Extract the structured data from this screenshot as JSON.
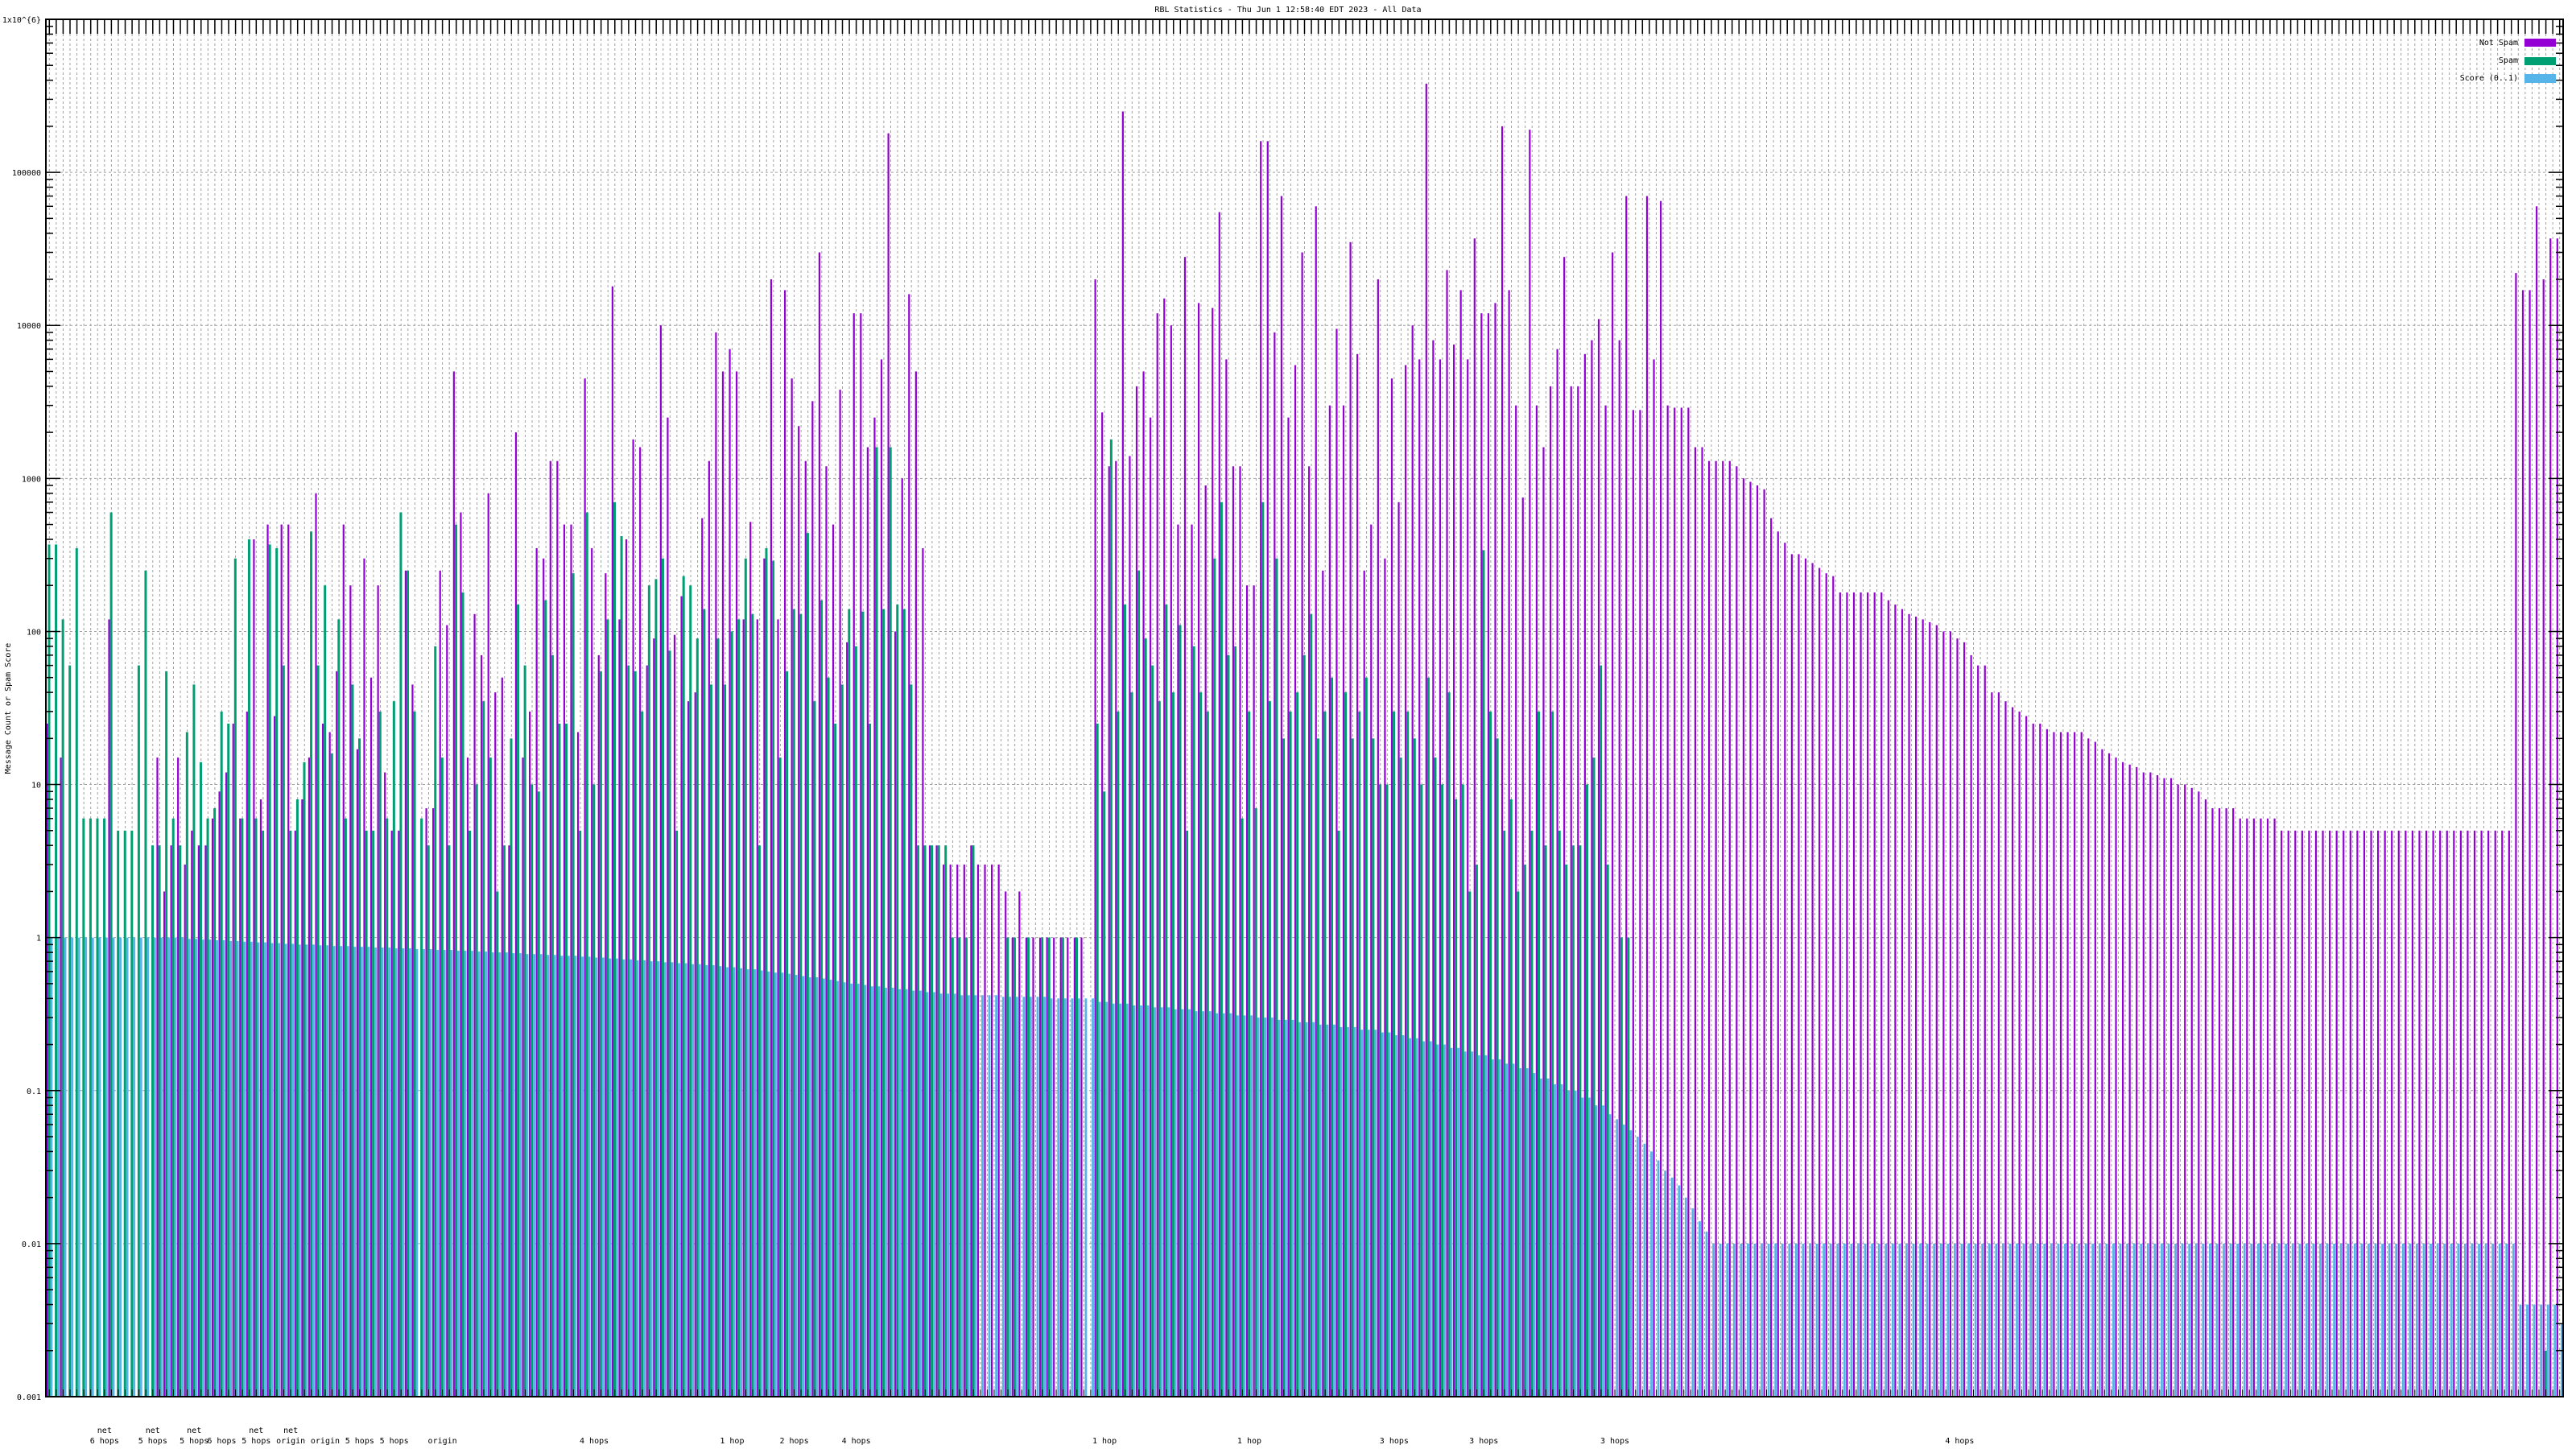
{
  "chart_data": {
    "type": "bar",
    "title": "RBL Statistics - Thu Jun  1 12:58:40 EDT 2023 - All Data",
    "xlabel": "",
    "ylabel": "Message Count or Spam Score",
    "yscale": "log",
    "ylim": [
      0.001,
      1000000
    ],
    "y_ticks": [
      {
        "value": 1000000,
        "label": "1x10^{6}"
      },
      {
        "value": 100000,
        "label": "100000"
      },
      {
        "value": 10000,
        "label": "10000"
      },
      {
        "value": 1000,
        "label": "1000"
      },
      {
        "value": 100,
        "label": "100"
      },
      {
        "value": 10,
        "label": "10"
      },
      {
        "value": 1,
        "label": "1"
      },
      {
        "value": 0.1,
        "label": "0.1"
      },
      {
        "value": 0.01,
        "label": "0.01"
      },
      {
        "value": 0.001,
        "label": "0.001"
      }
    ],
    "grid": true,
    "legend_position": "top-right",
    "category_count": 365,
    "x_label_fragments": [
      {
        "index": 8,
        "lines": [
          "net",
          "6 hops"
        ]
      },
      {
        "index": 15,
        "lines": [
          "net",
          "5 hops"
        ]
      },
      {
        "index": 21,
        "lines": [
          "net",
          "5 hops"
        ]
      },
      {
        "index": 25,
        "lines": [
          "",
          "6 hops"
        ]
      },
      {
        "index": 30,
        "lines": [
          "net",
          "5 hops"
        ]
      },
      {
        "index": 35,
        "lines": [
          "net",
          "origin"
        ]
      },
      {
        "index": 40,
        "lines": [
          "",
          "origin"
        ]
      },
      {
        "index": 45,
        "lines": [
          "",
          "5 hops"
        ]
      },
      {
        "index": 50,
        "lines": [
          "",
          "5 hops"
        ]
      },
      {
        "index": 57,
        "lines": [
          "",
          "origin"
        ]
      },
      {
        "index": 79,
        "lines": [
          "",
          "4 hops"
        ]
      },
      {
        "index": 99,
        "lines": [
          "",
          "1 hop"
        ]
      },
      {
        "index": 108,
        "lines": [
          "",
          "2 hops"
        ]
      },
      {
        "index": 117,
        "lines": [
          "",
          "4 hops"
        ]
      },
      {
        "index": 153,
        "lines": [
          "",
          "1 hop"
        ]
      },
      {
        "index": 174,
        "lines": [
          "",
          "1 hop"
        ]
      },
      {
        "index": 195,
        "lines": [
          "",
          "3 hops"
        ]
      },
      {
        "index": 208,
        "lines": [
          "",
          "3 hops"
        ]
      },
      {
        "index": 227,
        "lines": [
          "",
          "3 hops"
        ]
      },
      {
        "index": 277,
        "lines": [
          "",
          "4 hops"
        ]
      }
    ],
    "series": [
      {
        "name": "Not Spam",
        "color": "#9400d3",
        "values": [
          25,
          0,
          15,
          0,
          0,
          0,
          0,
          0,
          0,
          120,
          0,
          0,
          0,
          0,
          0,
          0,
          15,
          2,
          4,
          15,
          3,
          5,
          4,
          4,
          6,
          9,
          12,
          25,
          6,
          30,
          400,
          8,
          500,
          28,
          500,
          500,
          5,
          8,
          15,
          800,
          25,
          22,
          55,
          500,
          200,
          17,
          300,
          50,
          200,
          12,
          5,
          5,
          250,
          45,
          0,
          7,
          7,
          250,
          110,
          5000,
          600,
          15,
          130,
          70,
          800,
          40,
          50,
          4,
          2000,
          15,
          30,
          350,
          300,
          1300,
          1300,
          500,
          500,
          22,
          4500,
          350,
          70,
          240,
          18000,
          120,
          400,
          1800,
          1600,
          60,
          90,
          10000,
          2500,
          95,
          170,
          35,
          40,
          550,
          1300,
          9000,
          5000,
          7000,
          5000,
          120,
          520,
          120,
          300,
          20000,
          120,
          17000,
          4500,
          2200,
          1300,
          3200,
          30000,
          1200,
          500,
          3800,
          85,
          12000,
          12000,
          1600,
          2500,
          6000,
          180000,
          100,
          1000,
          16000,
          5000,
          350,
          4,
          4,
          3,
          3,
          3,
          3,
          4,
          3,
          3,
          3,
          3,
          2,
          1,
          2,
          1,
          1,
          1,
          1,
          1,
          1,
          1,
          1,
          1,
          0,
          20000,
          2700,
          1200,
          1300,
          250000,
          1400,
          4000,
          5000,
          2500,
          12000,
          15000,
          10000,
          500,
          28000,
          500,
          14000,
          900,
          13000,
          55000,
          6000,
          1200,
          1200,
          200,
          200,
          160000,
          160000,
          9000,
          70000,
          2500,
          5500,
          30000,
          1200,
          60000,
          250,
          3000,
          9500,
          3000,
          35000,
          6500,
          250,
          500,
          20000,
          300,
          4500,
          700,
          5500,
          10000,
          6000,
          380000,
          8000,
          6000,
          23000,
          7500,
          17000,
          6000,
          37000,
          12000,
          12000,
          14000,
          200000,
          17000,
          3000,
          750,
          190000,
          3000,
          1600,
          4000,
          7000,
          28000,
          4000,
          4000,
          6500,
          8000,
          11000,
          3000,
          30000,
          8000,
          70000,
          2800,
          2800,
          70000,
          6000,
          65000,
          3000,
          2900,
          2900,
          2900,
          1600,
          1600,
          1300,
          1300,
          1300,
          1300,
          1200,
          1000,
          950,
          900,
          850,
          550,
          450,
          380,
          320,
          320,
          300,
          280,
          260,
          240,
          230,
          180,
          180,
          180,
          180,
          180,
          180,
          180,
          160,
          150,
          140,
          130,
          125,
          120,
          115,
          110,
          100,
          100,
          90,
          85,
          70,
          60,
          60,
          40,
          40,
          35,
          32,
          30,
          28,
          25,
          25,
          23,
          22,
          22,
          22,
          22,
          22,
          20,
          19,
          17,
          16,
          15,
          14,
          13.5,
          13,
          12,
          12,
          11.5,
          11,
          11,
          10,
          10,
          9.5,
          9,
          8,
          7,
          7,
          7,
          7,
          6,
          6,
          6,
          6,
          6,
          6,
          5,
          5,
          5,
          5,
          5,
          5,
          5,
          5,
          5,
          5,
          5,
          5,
          5,
          5,
          5,
          5,
          5,
          5,
          5,
          5,
          5,
          5,
          5,
          5,
          5,
          5,
          5,
          5,
          5,
          5,
          5,
          5,
          5,
          5,
          22000,
          17000,
          17000,
          60000,
          20000,
          37000,
          37000
        ]
      },
      {
        "name": "Spam",
        "color": "#009e73",
        "values": [
          370,
          370,
          120,
          60,
          350,
          6,
          6,
          6,
          6,
          600,
          5,
          5,
          5,
          60,
          250,
          4,
          4,
          55,
          6,
          4,
          22,
          45,
          14,
          6,
          7,
          30,
          25,
          300,
          6,
          400,
          6,
          5,
          370,
          350,
          60,
          5,
          8,
          14,
          450,
          60,
          200,
          16,
          120,
          6,
          45,
          20,
          5,
          5,
          30,
          6,
          35,
          600,
          250,
          30,
          6,
          4,
          80,
          15,
          4,
          500,
          180,
          5,
          10,
          35,
          15,
          2,
          4,
          20,
          150,
          60,
          10,
          9,
          160,
          70,
          25,
          25,
          240,
          5,
          600,
          10,
          55,
          120,
          700,
          420,
          60,
          55,
          30,
          200,
          220,
          300,
          75,
          5,
          230,
          200,
          90,
          140,
          45,
          90,
          45,
          100,
          120,
          300,
          130,
          4,
          350,
          290,
          15,
          55,
          140,
          130,
          440,
          35,
          160,
          50,
          25,
          45,
          140,
          80,
          135,
          25,
          1600,
          140,
          1600,
          150,
          140,
          45,
          4,
          4,
          4,
          4,
          4,
          1,
          1,
          1,
          4,
          0,
          0,
          0,
          0,
          1,
          1,
          0,
          1,
          0,
          1,
          1,
          0,
          1,
          0,
          1,
          0,
          0,
          25,
          9,
          1800,
          30,
          150,
          40,
          250,
          90,
          60,
          35,
          150,
          40,
          110,
          5,
          80,
          40,
          30,
          300,
          700,
          70,
          80,
          6,
          30,
          7,
          700,
          35,
          300,
          20,
          30,
          40,
          70,
          130,
          20,
          30,
          50,
          5,
          40,
          20,
          30,
          50,
          20,
          10,
          10,
          30,
          15,
          30,
          20,
          10,
          50,
          15,
          10,
          40,
          8,
          10,
          2,
          3,
          340,
          30,
          20,
          5,
          8,
          2,
          3,
          5,
          30,
          4,
          30,
          5,
          3,
          4,
          4,
          10,
          15,
          60,
          3,
          0,
          1,
          1,
          0,
          0,
          0,
          0,
          0,
          0,
          0,
          0,
          0,
          0,
          0,
          0,
          0,
          0,
          0,
          0,
          0,
          0,
          0,
          0,
          0,
          0,
          0,
          0,
          0,
          0,
          0,
          0,
          0,
          0,
          0,
          0,
          0,
          0,
          0,
          0,
          0,
          0,
          0,
          0,
          0,
          0,
          0,
          0,
          0,
          0,
          0,
          0,
          0,
          0,
          0,
          0,
          0,
          0,
          0,
          0,
          0,
          0,
          0,
          0,
          0,
          0,
          0,
          0,
          0,
          0,
          0,
          0,
          0,
          0,
          0,
          0,
          0,
          0,
          0,
          0,
          0,
          0,
          0,
          0,
          0,
          0,
          0,
          0,
          0,
          0,
          0,
          0,
          0,
          0,
          0,
          0,
          0,
          0,
          0,
          0,
          0,
          0,
          0,
          0,
          0,
          0,
          0,
          0,
          0,
          0,
          0,
          0,
          0,
          0,
          0,
          0,
          0,
          0,
          0,
          0,
          0,
          0,
          0,
          0,
          0,
          0,
          0,
          0,
          0,
          0,
          0,
          0,
          0,
          0,
          0,
          0,
          0.002,
          0,
          0
        ]
      },
      {
        "name": "Score (0..1)",
        "color": "#56b4e9",
        "values": [
          1,
          1,
          1,
          1,
          1,
          1,
          1,
          1,
          1,
          1,
          1,
          1,
          1,
          1,
          1,
          1,
          1,
          1,
          1,
          1,
          0.98,
          0.98,
          0.97,
          0.97,
          0.96,
          0.96,
          0.95,
          0.95,
          0.94,
          0.94,
          0.93,
          0.93,
          0.92,
          0.92,
          0.91,
          0.91,
          0.9,
          0.9,
          0.9,
          0.89,
          0.89,
          0.88,
          0.88,
          0.88,
          0.87,
          0.87,
          0.87,
          0.86,
          0.86,
          0.86,
          0.85,
          0.85,
          0.85,
          0.84,
          0.84,
          0.84,
          0.83,
          0.83,
          0.83,
          0.82,
          0.82,
          0.82,
          0.81,
          0.81,
          0.8,
          0.8,
          0.8,
          0.79,
          0.79,
          0.78,
          0.78,
          0.78,
          0.77,
          0.77,
          0.76,
          0.76,
          0.76,
          0.75,
          0.75,
          0.74,
          0.74,
          0.73,
          0.73,
          0.72,
          0.72,
          0.71,
          0.71,
          0.7,
          0.7,
          0.69,
          0.69,
          0.68,
          0.68,
          0.67,
          0.67,
          0.66,
          0.66,
          0.65,
          0.64,
          0.64,
          0.63,
          0.62,
          0.62,
          0.61,
          0.6,
          0.59,
          0.59,
          0.58,
          0.57,
          0.56,
          0.55,
          0.55,
          0.54,
          0.53,
          0.52,
          0.51,
          0.5,
          0.5,
          0.49,
          0.48,
          0.48,
          0.47,
          0.47,
          0.46,
          0.46,
          0.45,
          0.45,
          0.44,
          0.44,
          0.43,
          0.43,
          0.43,
          0.42,
          0.42,
          0.42,
          0.42,
          0.42,
          0.42,
          0.41,
          0.41,
          0.41,
          0.41,
          0.41,
          0.41,
          0.41,
          0.4,
          0.4,
          0.4,
          0.4,
          0.4,
          0.4,
          0.4,
          0.38,
          0.38,
          0.37,
          0.37,
          0.37,
          0.36,
          0.36,
          0.36,
          0.35,
          0.35,
          0.35,
          0.34,
          0.34,
          0.34,
          0.33,
          0.33,
          0.33,
          0.32,
          0.32,
          0.32,
          0.31,
          0.31,
          0.31,
          0.3,
          0.3,
          0.3,
          0.29,
          0.29,
          0.29,
          0.28,
          0.28,
          0.28,
          0.27,
          0.27,
          0.27,
          0.26,
          0.26,
          0.26,
          0.25,
          0.25,
          0.25,
          0.24,
          0.24,
          0.23,
          0.23,
          0.22,
          0.22,
          0.21,
          0.21,
          0.2,
          0.2,
          0.19,
          0.19,
          0.18,
          0.18,
          0.17,
          0.17,
          0.16,
          0.16,
          0.15,
          0.15,
          0.14,
          0.14,
          0.13,
          0.12,
          0.12,
          0.11,
          0.11,
          0.1,
          0.1,
          0.09,
          0.09,
          0.08,
          0.08,
          0.07,
          0.065,
          0.06,
          0.055,
          0.05,
          0.045,
          0.04,
          0.035,
          0.03,
          0.027,
          0.024,
          0.02,
          0.017,
          0.014,
          0.012,
          0.01,
          0.01,
          0.01,
          0.01,
          0.01,
          0.01,
          0.01,
          0.01,
          0.01,
          0.01,
          0.01,
          0.01,
          0.01,
          0.01,
          0.01,
          0.01,
          0.01,
          0.01,
          0.01,
          0.01,
          0.01,
          0.01,
          0.01,
          0.01,
          0.01,
          0.01,
          0.01,
          0.01,
          0.01,
          0.01,
          0.01,
          0.01,
          0.01,
          0.01,
          0.01,
          0.01,
          0.01,
          0.01,
          0.01,
          0.01,
          0.01,
          0.01,
          0.01,
          0.01,
          0.01,
          0.01,
          0.01,
          0.01,
          0.01,
          0.01,
          0.01,
          0.01,
          0.01,
          0.01,
          0.01,
          0.01,
          0.01,
          0.01,
          0.01,
          0.01,
          0.01,
          0.01,
          0.01,
          0.01,
          0.01,
          0.01,
          0.01,
          0.01,
          0.01,
          0.01,
          0.01,
          0.01,
          0.01,
          0.01,
          0.01,
          0.01,
          0.01,
          0.01,
          0.01,
          0.01,
          0.01,
          0.01,
          0.01,
          0.01,
          0.01,
          0.01,
          0.01,
          0.01,
          0.01,
          0.01,
          0.01,
          0.01,
          0.01,
          0.01,
          0.01,
          0.01,
          0.01,
          0.01,
          0.01,
          0.01,
          0.01,
          0.01,
          0.01,
          0.01,
          0.01,
          0.01,
          0.01,
          0.01,
          0.01,
          0.01,
          0.01,
          0.01,
          0.01,
          0.01,
          0.01,
          0.01,
          0.01,
          0.004,
          0.004,
          0.004,
          0.004,
          0.004,
          0.004,
          0.003
        ]
      }
    ]
  }
}
